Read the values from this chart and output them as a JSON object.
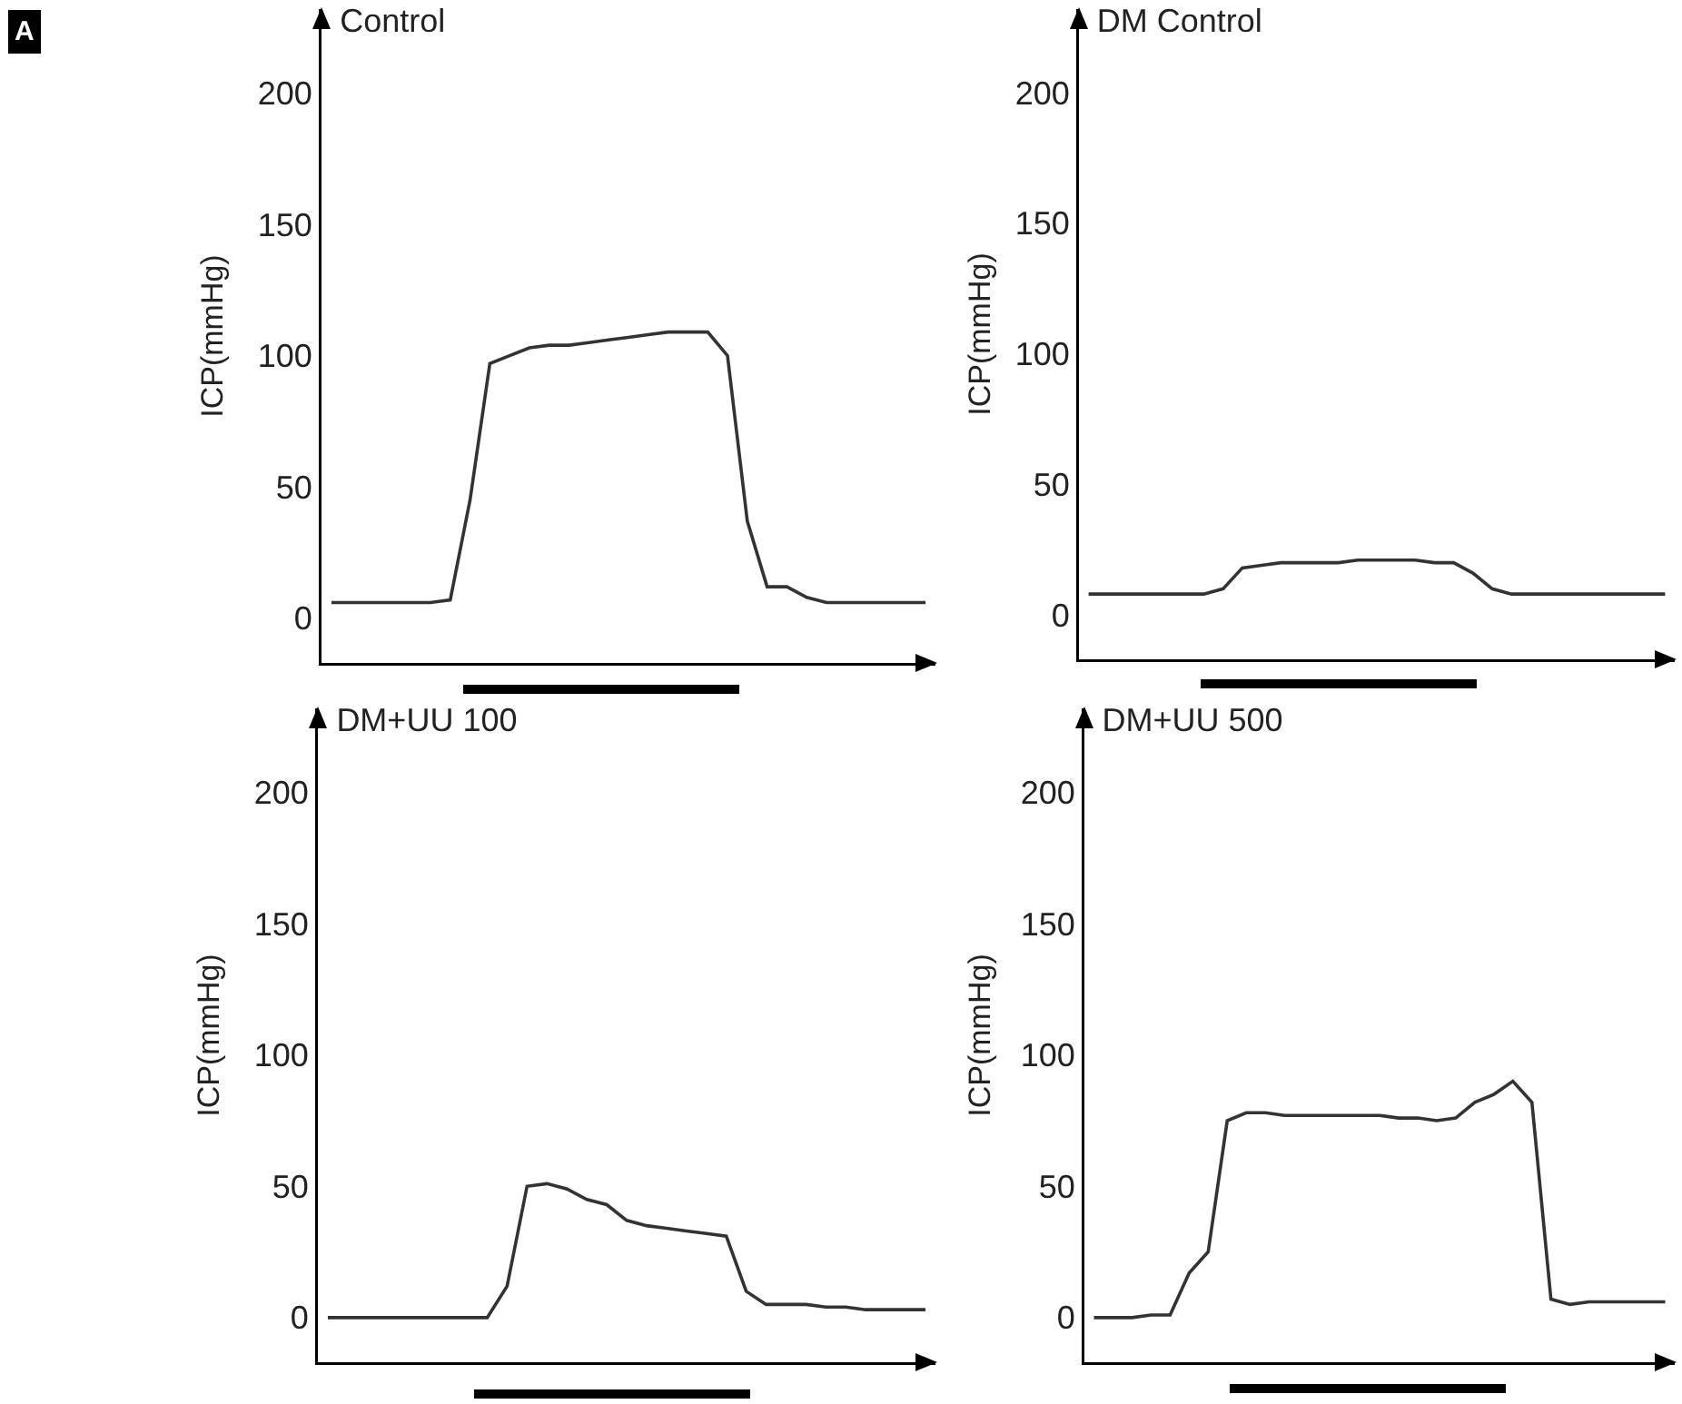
{
  "chart_data": [
    {
      "type": "line",
      "title": "Control",
      "ylabel": "ICP(mmHg)",
      "annotations": [
        "A"
      ],
      "categories": [
        null,
        null,
        null,
        null,
        null,
        null,
        null,
        null,
        null,
        null,
        null,
        null,
        null,
        null,
        null,
        null,
        null,
        null,
        null,
        null,
        null,
        null,
        null,
        null,
        null,
        null,
        null,
        null,
        null,
        null,
        null
      ],
      "series": [
        {
          "color": "#333333",
          "values": [
            6,
            6,
            6,
            6,
            6,
            6,
            7,
            45,
            97,
            100,
            103,
            104,
            104,
            105,
            106,
            107,
            108,
            109,
            109,
            109,
            100,
            37,
            12,
            12,
            8,
            6,
            6,
            6,
            6,
            6,
            6
          ]
        }
      ],
      "ylim": [
        -17,
        232
      ],
      "yticks": [
        0,
        50,
        100,
        150,
        200
      ],
      "tick_labels": "y",
      "grid": false,
      "marker": "none",
      "line_style": "solid"
    },
    {
      "type": "line",
      "title": "DM Control",
      "ylabel": "ICP(mmHg)",
      "categories": [
        null,
        null,
        null,
        null,
        null,
        null,
        null,
        null,
        null,
        null,
        null,
        null,
        null,
        null,
        null,
        null,
        null,
        null,
        null,
        null,
        null,
        null,
        null,
        null,
        null,
        null,
        null,
        null,
        null,
        null,
        null
      ],
      "series": [
        {
          "color": "#333333",
          "values": [
            8,
            8,
            8,
            8,
            8,
            8,
            8,
            10,
            18,
            19,
            20,
            20,
            20,
            20,
            21,
            21,
            21,
            21,
            20,
            20,
            16,
            10,
            8,
            8,
            8,
            8,
            8,
            8,
            8,
            8,
            8
          ]
        }
      ],
      "ylim": [
        -17,
        232
      ],
      "yticks": [
        0,
        50,
        100,
        150,
        200
      ],
      "tick_labels": "y",
      "grid": false,
      "marker": "none",
      "line_style": "solid"
    },
    {
      "type": "line",
      "title": "DM+UU 100",
      "ylabel": "ICP(mmHg)",
      "categories": [
        null,
        null,
        null,
        null,
        null,
        null,
        null,
        null,
        null,
        null,
        null,
        null,
        null,
        null,
        null,
        null,
        null,
        null,
        null,
        null,
        null,
        null,
        null,
        null,
        null,
        null,
        null,
        null,
        null,
        null,
        null
      ],
      "series": [
        {
          "color": "#333333",
          "values": [
            0,
            0,
            0,
            0,
            0,
            0,
            0,
            0,
            0,
            12,
            50,
            51,
            49,
            45,
            43,
            37,
            35,
            34,
            33,
            32,
            31,
            10,
            5,
            5,
            5,
            4,
            4,
            3,
            3,
            3,
            3
          ]
        }
      ],
      "ylim": [
        -17,
        232
      ],
      "yticks": [
        0,
        50,
        100,
        150,
        200
      ],
      "tick_labels": "y",
      "grid": false,
      "marker": "none",
      "line_style": "solid"
    },
    {
      "type": "line",
      "title": "DM+UU 500",
      "ylabel": "ICP(mmHg)",
      "categories": [
        null,
        null,
        null,
        null,
        null,
        null,
        null,
        null,
        null,
        null,
        null,
        null,
        null,
        null,
        null,
        null,
        null,
        null,
        null,
        null,
        null,
        null,
        null,
        null,
        null,
        null,
        null,
        null,
        null,
        null,
        null
      ],
      "series": [
        {
          "color": "#333333",
          "values": [
            0,
            0,
            0,
            1,
            1,
            17,
            25,
            75,
            78,
            78,
            77,
            77,
            77,
            77,
            77,
            77,
            76,
            76,
            75,
            76,
            82,
            85,
            90,
            82,
            7,
            5,
            6,
            6,
            6,
            6,
            6
          ]
        }
      ],
      "ylim": [
        -17,
        232
      ],
      "yticks": [
        0,
        50,
        100,
        150,
        200
      ],
      "tick_labels": "y",
      "grid": false,
      "marker": "none",
      "line_style": "solid"
    }
  ]
}
